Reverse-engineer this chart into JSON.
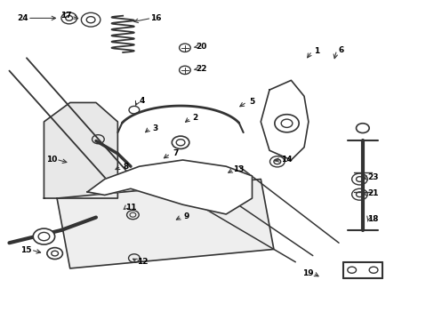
{
  "bg_color": "#ffffff",
  "line_color": "#333333"
}
